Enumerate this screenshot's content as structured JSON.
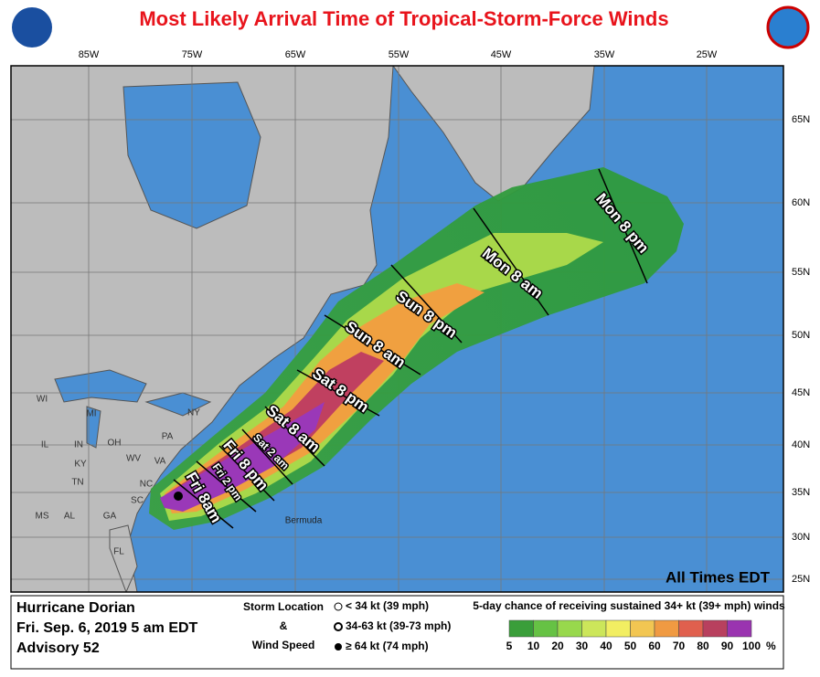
{
  "header": {
    "title": "Most Likely Arrival Time of Tropical-Storm-Force Winds"
  },
  "longitude_labels": [
    "85W",
    "75W",
    "65W",
    "55W",
    "45W",
    "35W",
    "25W"
  ],
  "latitude_labels": [
    "65N",
    "60N",
    "55N",
    "50N",
    "45N",
    "40N",
    "35N",
    "30N",
    "25N"
  ],
  "state_labels": [
    "WI",
    "MI",
    "NY",
    "PA",
    "IL",
    "IN",
    "OH",
    "WV",
    "VA",
    "KY",
    "TN",
    "NC",
    "SC",
    "GA",
    "AL",
    "MS",
    "FL"
  ],
  "place_labels": [
    "Bermuda"
  ],
  "arrival_labels": [
    "Fri 8am",
    "Fri 2 pm",
    "Fri 8 pm",
    "Sat 2 am",
    "Sat 8 am",
    "Sat 8 pm",
    "Sun 8 am",
    "Sun 8 pm",
    "Mon 8 am",
    "Mon 8 pm"
  ],
  "time_note": "All Times EDT",
  "info": {
    "storm": "Hurricane Dorian",
    "date": "Fri. Sep. 6, 2019  5 am EDT",
    "advisory": "Advisory 52"
  },
  "storm_key": {
    "line1": "Storm Location",
    "line2": "&",
    "line3": "Wind Speed",
    "items": [
      "< 34 kt (39 mph)",
      "34-63 kt (39-73 mph)",
      "≥ 64 kt (74 mph)"
    ]
  },
  "probability_legend": {
    "title": "5-day chance of receiving sustained 34+ kt (39+ mph) winds",
    "labels": [
      "5",
      "10",
      "20",
      "30",
      "40",
      "50",
      "60",
      "70",
      "80",
      "90",
      "100"
    ],
    "unit": "%"
  }
}
